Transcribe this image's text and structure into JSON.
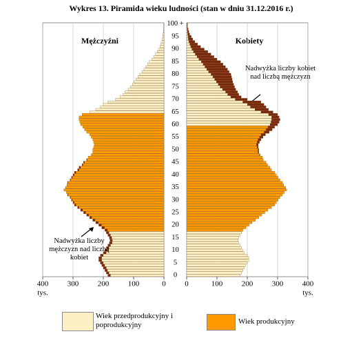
{
  "chart_data": {
    "type": "population_pyramid",
    "title": "Wykres 13. Piramida wieku ludności (stan w dniu 31.12.2016 r.)",
    "categories": [
      "0",
      null,
      null,
      null,
      null,
      "5",
      null,
      null,
      null,
      null,
      "10",
      null,
      null,
      null,
      null,
      "15",
      null,
      null,
      null,
      null,
      "20",
      null,
      null,
      null,
      null,
      "25",
      null,
      null,
      null,
      null,
      "30",
      null,
      null,
      null,
      null,
      "35",
      null,
      null,
      null,
      null,
      "40",
      null,
      null,
      null,
      null,
      "45",
      null,
      null,
      null,
      null,
      "50",
      null,
      null,
      null,
      null,
      "55",
      null,
      null,
      null,
      null,
      "60",
      null,
      null,
      null,
      null,
      "65",
      null,
      null,
      null,
      null,
      "70",
      null,
      null,
      null,
      null,
      "75",
      null,
      null,
      null,
      null,
      "80",
      null,
      null,
      null,
      null,
      "85",
      null,
      null,
      null,
      null,
      "90",
      null,
      null,
      null,
      null,
      "95",
      null,
      null,
      null,
      null,
      "100 +"
    ],
    "series": [
      {
        "name": "Mężczyźni",
        "side": "left",
        "productive_ages": [
          18,
          64
        ],
        "values": [
          185,
          190,
          195,
          200,
          205,
          210,
          215,
          215,
          210,
          200,
          195,
          190,
          185,
          180,
          178,
          180,
          185,
          190,
          195,
          205,
          215,
          225,
          235,
          245,
          255,
          265,
          275,
          285,
          295,
          300,
          305,
          310,
          318,
          322,
          330,
          325,
          320,
          318,
          310,
          305,
          300,
          295,
          285,
          280,
          270,
          265,
          255,
          250,
          240,
          235,
          235,
          232,
          230,
          232,
          235,
          240,
          245,
          255,
          262,
          268,
          275,
          278,
          280,
          280,
          270,
          245,
          225,
          210,
          200,
          185,
          160,
          145,
          135,
          128,
          118,
          110,
          104,
          98,
          92,
          86,
          80,
          72,
          66,
          60,
          54,
          48,
          40,
          34,
          28,
          22,
          17,
          13,
          10,
          7,
          5,
          4,
          3,
          2,
          1.5,
          1,
          1
        ]
      },
      {
        "name": "Kobiety",
        "side": "right",
        "productive_ages": [
          18,
          59
        ],
        "values": [
          176,
          181,
          186,
          190,
          195,
          200,
          205,
          205,
          200,
          190,
          185,
          181,
          176,
          171,
          170,
          172,
          176,
          181,
          186,
          196,
          206,
          216,
          227,
          238,
          248,
          258,
          268,
          280,
          290,
          296,
          302,
          308,
          316,
          322,
          330,
          326,
          320,
          316,
          308,
          302,
          296,
          290,
          280,
          275,
          267,
          262,
          253,
          250,
          242,
          238,
          238,
          236,
          236,
          240,
          245,
          252,
          260,
          272,
          282,
          290,
          300,
          305,
          308,
          305,
          300,
          285,
          270,
          262,
          255,
          245,
          200,
          180,
          172,
          168,
          162,
          158,
          155,
          152,
          150,
          148,
          146,
          140,
          135,
          128,
          120,
          112,
          100,
          90,
          80,
          70,
          58,
          46,
          36,
          27,
          20,
          15,
          10,
          7,
          5,
          3,
          3
        ]
      }
    ],
    "legend": [
      {
        "label": "Wiek przedprodukcyjny i poprodukcyjny",
        "color": "#fdf0c4"
      },
      {
        "label": "Wiek produkcyjny",
        "color": "#ff9900"
      }
    ],
    "surplus_color": "#7a2a0c",
    "xlim": [
      0,
      400
    ],
    "xticks": [
      0,
      100,
      200,
      300,
      400
    ],
    "x_unit": "tys.",
    "grid": true,
    "annotations": [
      "Nadwyżka liczby kobiet nad liczbą mężczyzn",
      "Nadwyżka liczby mężczyzn nad liczbą kobiet"
    ]
  }
}
